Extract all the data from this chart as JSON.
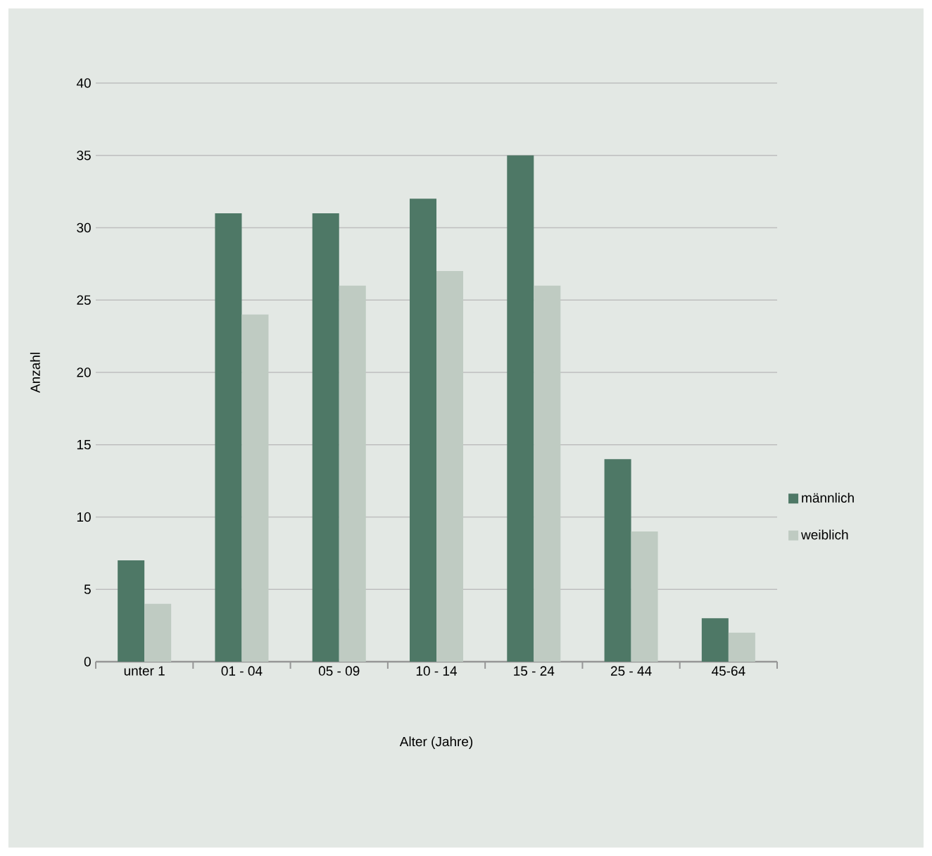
{
  "chart_data": {
    "type": "bar",
    "xlabel": "Alter (Jahre)",
    "ylabel": "Anzahl",
    "categories": [
      "unter 1",
      "01 - 04",
      "05 - 09",
      "10 - 14",
      "15 - 24",
      "25 - 44",
      "45-64"
    ],
    "series": [
      {
        "name": "männlich",
        "color": "#4e7866",
        "values": [
          7,
          31,
          31,
          32,
          35,
          14,
          3
        ]
      },
      {
        "name": "weiblich",
        "color": "#bfcbc2",
        "values": [
          4,
          24,
          26,
          27,
          26,
          9,
          2
        ]
      }
    ],
    "ylim": [
      0,
      40
    ],
    "yticks": [
      0,
      5,
      10,
      15,
      20,
      25,
      30,
      35,
      40
    ],
    "grid": "y",
    "legend": "right"
  }
}
